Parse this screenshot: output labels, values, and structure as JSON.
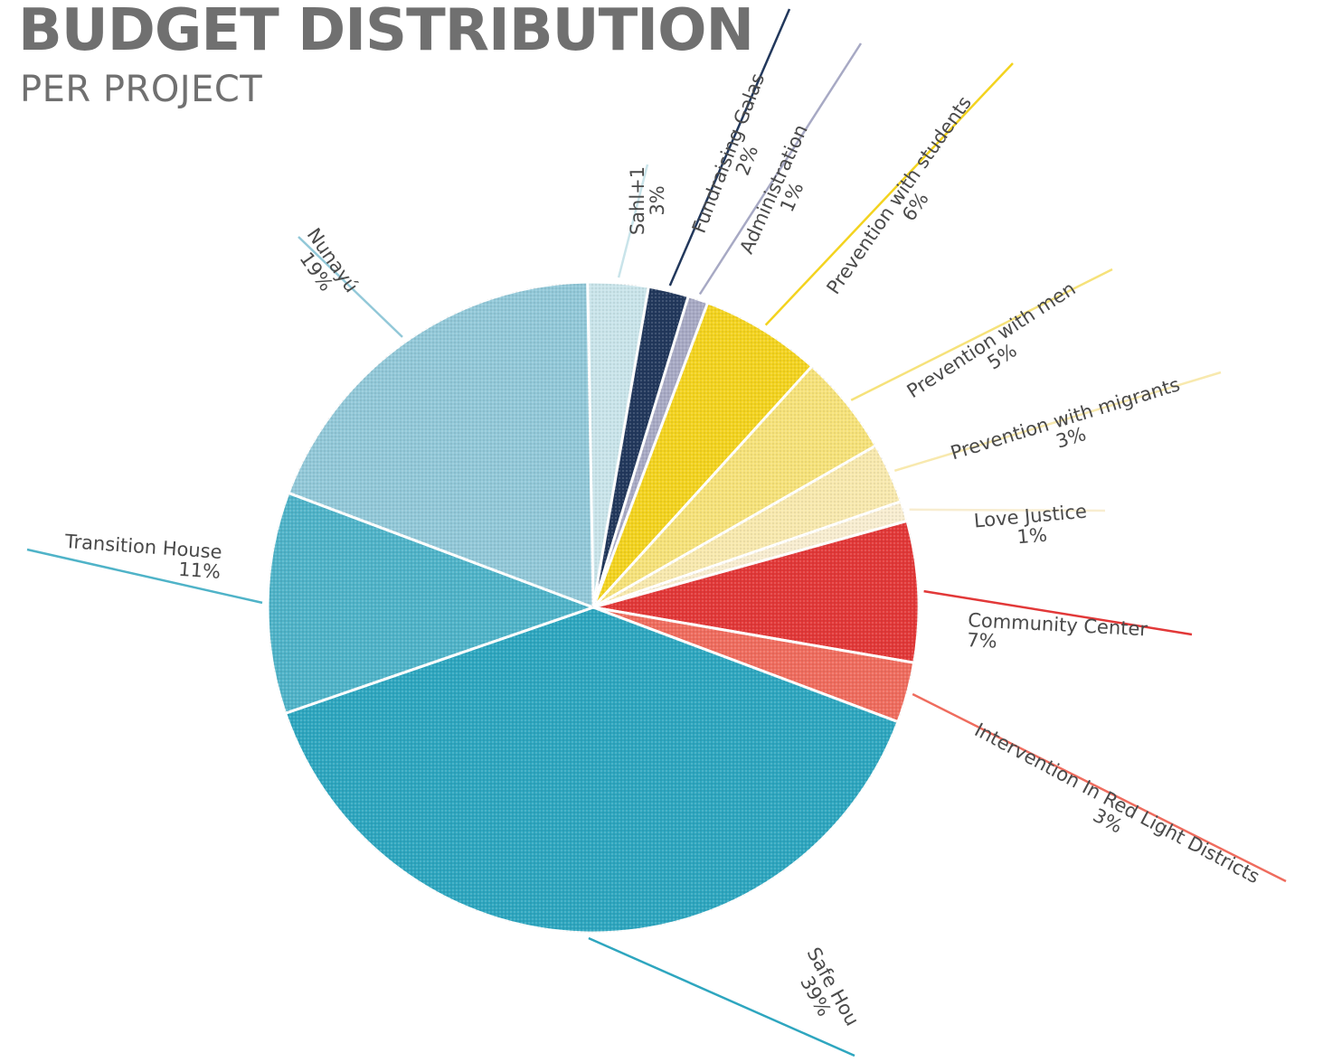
{
  "title": "BUDGET DISTRIBUTION",
  "subtitle": "PER PROJECT",
  "chart_data": {
    "type": "pie",
    "title": "BUDGET DISTRIBUTION",
    "subtitle": "PER PROJECT",
    "start_angle_deg": -1,
    "direction": "clockwise",
    "slices": [
      {
        "label": "Sahl+1",
        "value": 3,
        "display": "3%",
        "color": "#c9e4ea"
      },
      {
        "label": "Fundraising Galas",
        "value": 2,
        "display": "2%",
        "color": "#22385c"
      },
      {
        "label": "Administration",
        "value": 1,
        "display": "1%",
        "color": "#a7a9c4"
      },
      {
        "label": "Prevention with students",
        "value": 6,
        "display": "6%",
        "color": "#f3d31f"
      },
      {
        "label": "Prevention with men",
        "value": 5,
        "display": "5%",
        "color": "#f6e27a"
      },
      {
        "label": "Prevention with migrants",
        "value": 3,
        "display": "3%",
        "color": "#f8e9ae"
      },
      {
        "label": "Love Justice",
        "value": 1,
        "display": "1%",
        "color": "#f8edd0"
      },
      {
        "label": "Community Center",
        "value": 7,
        "display": "7%",
        "color": "#e23838"
      },
      {
        "label": "Intervention In Red Light Districts",
        "value": 3,
        "display": "3%",
        "color": "#ef6c5e"
      },
      {
        "label": "Safe Hou",
        "value": 39,
        "display": "39%",
        "color": "#2ea6bf"
      },
      {
        "label": "Transition House",
        "value": 11,
        "display": "11%",
        "color": "#4fb3c8"
      },
      {
        "label": "Nunayú",
        "value": 19,
        "display": "19%",
        "color": "#92c8d8"
      }
    ]
  }
}
